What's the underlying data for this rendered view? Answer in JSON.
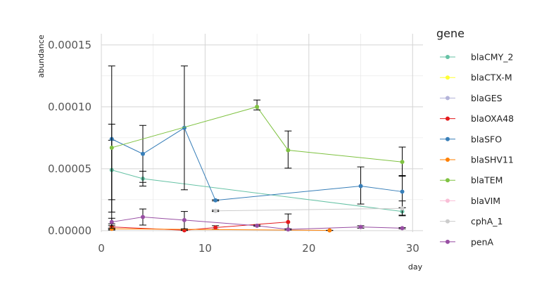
{
  "chart_data": {
    "type": "line",
    "xlabel": "day",
    "ylabel": "abundance",
    "xlim": [
      0,
      31
    ],
    "ylim": [
      -1.2e-06,
      0.000159
    ],
    "x_ticks": [
      0,
      10,
      20,
      30
    ],
    "x_tick_labels": [
      "0",
      "10",
      "20",
      "30"
    ],
    "y_ticks": [
      0,
      5e-05,
      0.0001,
      0.00015
    ],
    "y_tick_labels": [
      "0.00000",
      "0.00005",
      "0.00010",
      "0.00015"
    ],
    "grid": true,
    "error_bars": true,
    "legend": {
      "title": "gene",
      "position": "right"
    },
    "series": [
      {
        "name": "blaCMY_2",
        "color": "#66C2A5",
        "points": [
          {
            "x": 1,
            "y": 4.9e-05,
            "lo": 2.5e-05,
            "hi": 7.3e-05
          },
          {
            "x": 4,
            "y": 4.2e-05,
            "lo": 3.6e-05,
            "hi": 4.8e-05
          },
          {
            "x": 29,
            "y": 1.55e-05,
            "lo": 1.25e-05,
            "hi": 1.85e-05
          }
        ]
      },
      {
        "name": "blaCTX-M",
        "color": "#FFFF33",
        "points": []
      },
      {
        "name": "blaGES",
        "color": "#B3B3D9",
        "points": [
          {
            "x": 11,
            "y": 1.6e-05,
            "lo": 1.55e-05,
            "hi": 1.65e-05
          }
        ]
      },
      {
        "name": "blaOXA48",
        "color": "#E41A1C",
        "points": [
          {
            "x": 1,
            "y": 3e-06,
            "lo": 5e-07,
            "hi": 5.5e-06
          },
          {
            "x": 8,
            "y": 3e-07,
            "lo": 1e-07,
            "hi": 5e-07
          },
          {
            "x": 11,
            "y": 2.5e-06,
            "lo": 1e-06,
            "hi": 4e-06
          },
          {
            "x": 18,
            "y": 7e-06,
            "lo": 5e-07,
            "hi": 1.35e-05
          }
        ]
      },
      {
        "name": "blaSFO",
        "color": "#377EB8",
        "points": [
          {
            "x": 1,
            "y": 7.4e-05,
            "lo": 1.5e-05,
            "hi": 0.000133
          },
          {
            "x": 4,
            "y": 6.2e-05,
            "lo": 3.9e-05,
            "hi": 8.5e-05
          },
          {
            "x": 8,
            "y": 8.3e-05,
            "lo": 3.3e-05,
            "hi": 0.000133
          },
          {
            "x": 11,
            "y": 2.45e-05,
            "lo": 2.4e-05,
            "hi": 2.5e-05
          },
          {
            "x": 25,
            "y": 3.6e-05,
            "lo": 2.15e-05,
            "hi": 5.15e-05
          },
          {
            "x": 29,
            "y": 3.15e-05,
            "lo": 1.85e-05,
            "hi": 4.45e-05
          }
        ]
      },
      {
        "name": "blaSHV11",
        "color": "#FF7F00",
        "points": [
          {
            "x": 1,
            "y": 1.5e-06,
            "lo": 1e-06,
            "hi": 2e-06
          },
          {
            "x": 22,
            "y": 2e-07,
            "lo": 1e-07,
            "hi": 3e-07
          }
        ]
      },
      {
        "name": "blaTEM",
        "color": "#7FC241",
        "points": [
          {
            "x": 1,
            "y": 6.7e-05,
            "lo": 2e-06,
            "hi": 8.6e-05
          },
          {
            "x": 15,
            "y": 0.0001,
            "lo": 9.75e-05,
            "hi": 0.0001055
          },
          {
            "x": 18,
            "y": 6.5e-05,
            "lo": 5.05e-05,
            "hi": 8.05e-05
          },
          {
            "x": 29,
            "y": 5.55e-05,
            "lo": 4.4e-05,
            "hi": 6.75e-05
          }
        ]
      },
      {
        "name": "blaVIM",
        "color": "#F9BED6",
        "points": []
      },
      {
        "name": "cphA_1",
        "color": "#CCCCCC",
        "points": [
          {
            "x": 11,
            "y": 1.6e-05,
            "lo": 1.55e-05,
            "hi": 1.65e-05
          },
          {
            "x": 29,
            "y": 1.8e-05,
            "lo": 1.2e-05,
            "hi": 2.4e-05
          }
        ]
      },
      {
        "name": "penA",
        "color": "#984EA3",
        "points": [
          {
            "x": 1,
            "y": 7e-06,
            "lo": 4e-06,
            "hi": 1e-05
          },
          {
            "x": 4,
            "y": 1.1e-05,
            "lo": 4.5e-06,
            "hi": 1.75e-05
          },
          {
            "x": 8,
            "y": 8.5e-06,
            "lo": 1.5e-06,
            "hi": 1.55e-05
          },
          {
            "x": 15,
            "y": 4e-06,
            "lo": 3.5e-06,
            "hi": 4.5e-06
          },
          {
            "x": 18,
            "y": 1e-06,
            "lo": 5e-07,
            "hi": 1.5e-06
          },
          {
            "x": 25,
            "y": 3e-06,
            "lo": 2e-06,
            "hi": 4e-06
          },
          {
            "x": 29,
            "y": 2e-06,
            "lo": 1.5e-06,
            "hi": 2.5e-06
          }
        ]
      }
    ]
  }
}
